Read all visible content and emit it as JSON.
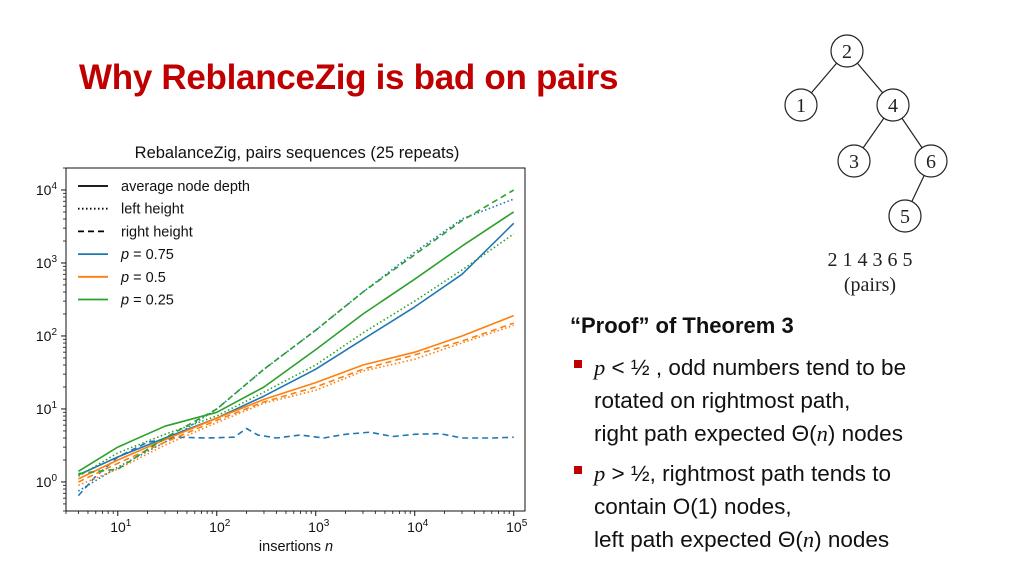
{
  "slide": {
    "title": "Why ReblanceZig is bad on pairs"
  },
  "chart_data": {
    "type": "line",
    "title": "RebalanceZig, pairs sequences (25 repeats)",
    "xlabel": "insertions n",
    "ylabel": "",
    "xscale": "log",
    "yscale": "log",
    "xlim": [
      3,
      130000
    ],
    "ylim": [
      0.4,
      20000
    ],
    "x_ticks": [
      {
        "value": 10,
        "base": "10",
        "exp": "1"
      },
      {
        "value": 100,
        "base": "10",
        "exp": "2"
      },
      {
        "value": 1000,
        "base": "10",
        "exp": "3"
      },
      {
        "value": 10000,
        "base": "10",
        "exp": "4"
      },
      {
        "value": 100000,
        "base": "10",
        "exp": "5"
      }
    ],
    "y_ticks": [
      {
        "value": 1,
        "base": "10",
        "exp": "0"
      },
      {
        "value": 10,
        "base": "10",
        "exp": "1"
      },
      {
        "value": 100,
        "base": "10",
        "exp": "2"
      },
      {
        "value": 1000,
        "base": "10",
        "exp": "3"
      },
      {
        "value": 10000,
        "base": "10",
        "exp": "4"
      }
    ],
    "grid": false,
    "legend_position": "top-left",
    "legend": [
      {
        "label": "average node depth",
        "style": "solid",
        "color": "#000000"
      },
      {
        "label": "left height",
        "style": "dotted",
        "color": "#000000"
      },
      {
        "label": "right height",
        "style": "dashed",
        "color": "#000000"
      },
      {
        "label": "p = 0.75",
        "prefix": "p",
        "suffix": " = 0.75",
        "style": "solid",
        "color": "#1f77b4"
      },
      {
        "label": "p = 0.5",
        "prefix": "p",
        "suffix": " = 0.5",
        "style": "solid",
        "color": "#ff7f0e"
      },
      {
        "label": "p = 0.25",
        "prefix": "p",
        "suffix": " = 0.25",
        "style": "solid",
        "color": "#2ca02c"
      }
    ],
    "series": [
      {
        "color": "#1f77b4",
        "style": "solid",
        "x": [
          4,
          10,
          30,
          100,
          300,
          1000,
          3000,
          10000,
          30000,
          100000
        ],
        "y": [
          1.25,
          2.2,
          4.0,
          7.5,
          15,
          35,
          90,
          250,
          700,
          3500
        ]
      },
      {
        "color": "#1f77b4",
        "style": "dotted",
        "x": [
          4,
          10,
          30,
          100,
          300,
          1000,
          3000,
          10000,
          30000,
          100000
        ],
        "y": [
          0.75,
          1.6,
          3.5,
          10,
          35,
          120,
          400,
          1400,
          4000,
          7500
        ]
      },
      {
        "color": "#1f77b4",
        "style": "dashed",
        "x": [
          4,
          6,
          10,
          20,
          40,
          80,
          150,
          200,
          260,
          400,
          700,
          1200,
          2000,
          3500,
          6000,
          10000,
          18000,
          30000,
          60000,
          100000
        ],
        "y": [
          0.65,
          1.2,
          2.2,
          3.5,
          4.1,
          4.0,
          4.1,
          5.4,
          4.4,
          4.0,
          4.4,
          4.0,
          4.5,
          4.8,
          4.2,
          4.5,
          4.6,
          4.0,
          4.0,
          4.1
        ]
      },
      {
        "color": "#ff7f0e",
        "style": "solid",
        "x": [
          4,
          10,
          30,
          100,
          300,
          1000,
          3000,
          10000,
          30000,
          100000
        ],
        "y": [
          1.1,
          2.0,
          3.8,
          7.5,
          13.5,
          23,
          40,
          60,
          100,
          190
        ]
      },
      {
        "color": "#ff7f0e",
        "style": "dotted",
        "x": [
          4,
          10,
          30,
          100,
          300,
          1000,
          3000,
          10000,
          30000,
          100000
        ],
        "y": [
          0.9,
          1.5,
          3.2,
          6.5,
          12,
          18,
          33,
          48,
          80,
          140
        ]
      },
      {
        "color": "#ff7f0e",
        "style": "dashed",
        "x": [
          4,
          10,
          30,
          100,
          300,
          1000,
          3000,
          10000,
          30000,
          100000
        ],
        "y": [
          1.0,
          1.8,
          3.5,
          7.0,
          12.5,
          20,
          35,
          55,
          85,
          150
        ]
      },
      {
        "color": "#2ca02c",
        "style": "solid",
        "x": [
          4,
          10,
          30,
          100,
          300,
          1000,
          3000,
          10000,
          30000,
          100000
        ],
        "y": [
          1.4,
          3.0,
          5.8,
          9.0,
          20,
          65,
          200,
          600,
          1700,
          5000
        ]
      },
      {
        "color": "#2ca02c",
        "style": "dotted",
        "x": [
          4,
          10,
          30,
          100,
          300,
          1000,
          3000,
          10000,
          30000,
          100000
        ],
        "y": [
          1.2,
          2.5,
          4.5,
          8.0,
          17,
          40,
          110,
          300,
          800,
          2500
        ]
      },
      {
        "color": "#2ca02c",
        "style": "dashed",
        "x": [
          4,
          10,
          30,
          100,
          300,
          1000,
          3000,
          10000,
          30000,
          100000
        ],
        "y": [
          1.3,
          1.5,
          4.0,
          10,
          35,
          120,
          400,
          1300,
          3800,
          10000
        ]
      }
    ]
  },
  "tree": {
    "nodes": [
      {
        "id": "n2",
        "label": "2"
      },
      {
        "id": "n1",
        "label": "1"
      },
      {
        "id": "n4",
        "label": "4"
      },
      {
        "id": "n3",
        "label": "3"
      },
      {
        "id": "n6",
        "label": "6"
      },
      {
        "id": "n5",
        "label": "5"
      }
    ],
    "edges": [
      [
        "n2",
        "n1"
      ],
      [
        "n2",
        "n4"
      ],
      [
        "n4",
        "n3"
      ],
      [
        "n4",
        "n6"
      ],
      [
        "n6",
        "n5"
      ]
    ],
    "sequence": "2 1 4 3 6 5",
    "caption": "(pairs)"
  },
  "proof": {
    "heading": "“Proof” of Theorem 3",
    "bullets": [
      {
        "lead_var": "p",
        "lead_rest": " < ½ , odd numbers tend to be",
        "line2": "rotated on rightmost path,",
        "line3_pre": "right path expected Θ(",
        "line3_var": "n",
        "line3_post": ") nodes"
      },
      {
        "lead_var": "p",
        "lead_rest": " > ½, rightmost path tends to",
        "line2": "contain O(1) nodes,",
        "line3_pre": "left path expected Θ(",
        "line3_var": "n",
        "line3_post": ") nodes"
      }
    ]
  },
  "colors": {
    "title": "#c00000",
    "bullet": "#c00000"
  }
}
